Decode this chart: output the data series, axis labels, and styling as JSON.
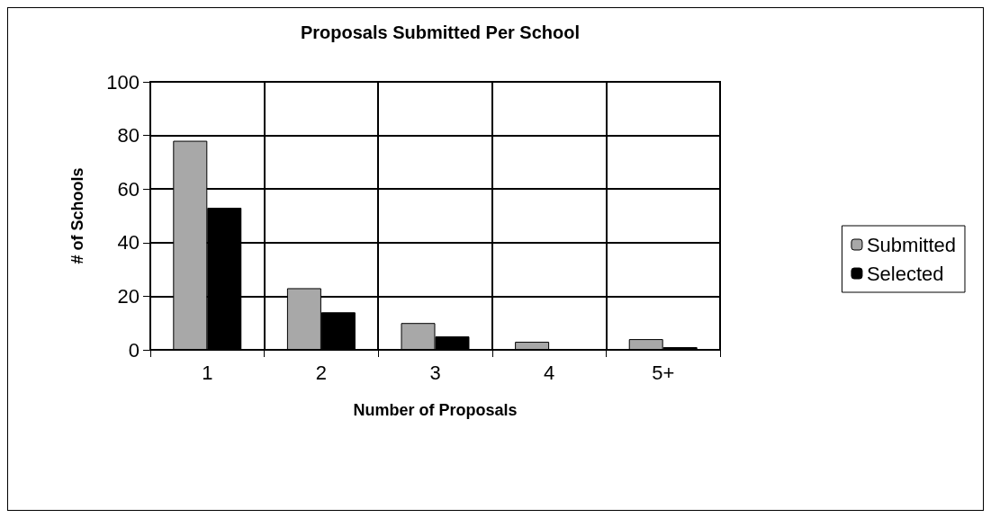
{
  "chart_data": {
    "type": "bar",
    "title": "Proposals Submitted Per School",
    "xlabel": "Number of Proposals",
    "ylabel": "# of Schools",
    "categories": [
      "1",
      "2",
      "3",
      "4",
      "5+"
    ],
    "series": [
      {
        "name": "Submitted",
        "color": "#a8a8a8",
        "values": [
          78,
          23,
          10,
          3,
          4
        ]
      },
      {
        "name": "Selected",
        "color": "#000000",
        "values": [
          53,
          14,
          5,
          0,
          1
        ]
      }
    ],
    "ylim": [
      0,
      100
    ],
    "yticks": [
      0,
      20,
      40,
      60,
      80,
      100
    ],
    "grid": true,
    "legend": "right"
  }
}
